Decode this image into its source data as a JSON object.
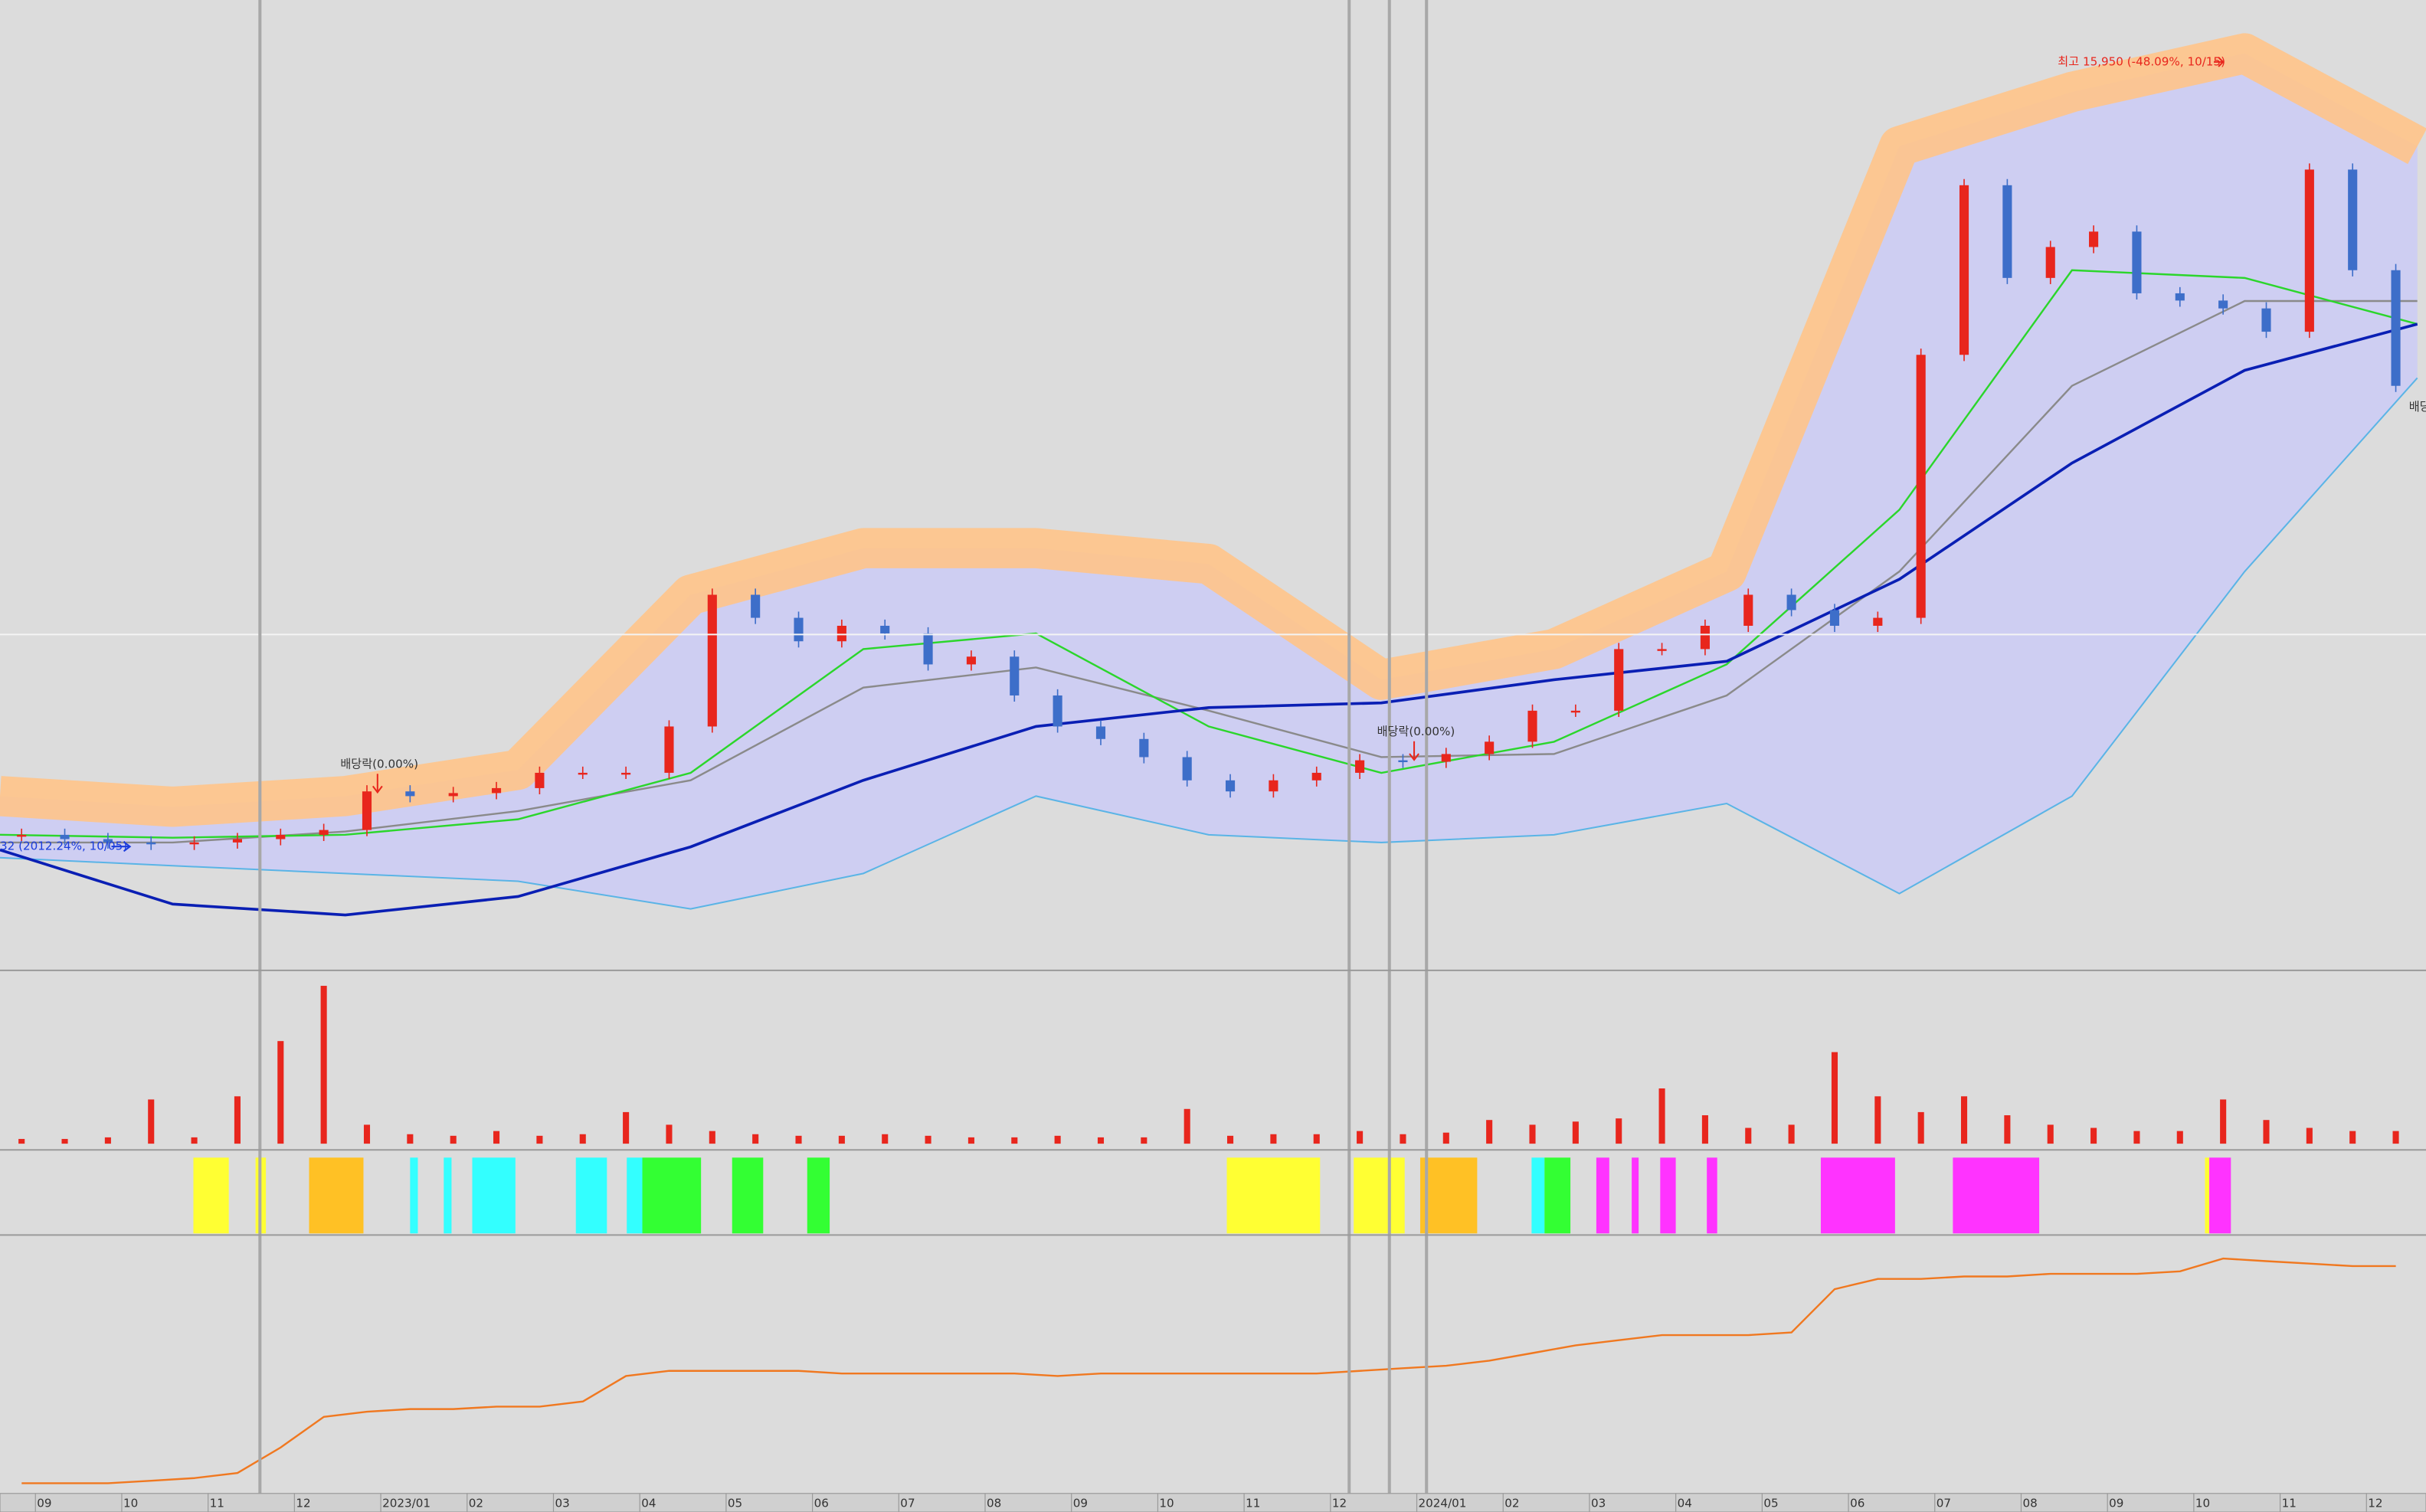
{
  "chart_data": {
    "type": "candlestick",
    "log_scale": true,
    "xlim": [
      0,
      28.1
    ],
    "ylim": [
      470,
      20300
    ],
    "x": [
      0.25,
      0.75,
      1.25,
      1.75,
      2.25,
      2.75,
      3.25,
      3.75,
      4.25,
      4.75,
      5.25,
      5.75,
      6.25,
      6.75,
      7.25,
      7.75,
      8.25,
      8.75,
      9.25,
      9.75,
      10.25,
      10.75,
      11.25,
      11.75,
      12.25,
      12.75,
      13.25,
      13.75,
      14.25,
      14.75,
      15.25,
      15.75,
      16.25,
      16.75,
      17.25,
      17.75,
      18.25,
      18.75,
      19.25,
      19.75,
      20.25,
      20.75,
      21.25,
      21.75,
      22.25,
      22.75,
      23.25,
      23.75,
      24.25,
      24.75,
      25.25,
      25.75,
      26.25,
      26.75,
      27.25,
      27.75
    ],
    "values": [
      787,
      774,
      764,
      760,
      764,
      774,
      787,
      802,
      932,
      915,
      926,
      944,
      1002,
      1002,
      1002,
      1200,
      2004,
      1832,
      1672,
      1776,
      1724,
      1528,
      1575,
      1354,
      1200,
      1143,
      1065,
      973,
      932,
      973,
      1002,
      1052,
      1046,
      1078,
      1131,
      1276,
      1276,
      1622,
      1622,
      1776,
      2004,
      1888,
      1776,
      1832,
      5100,
      9870,
      6880,
      7760,
      8240,
      6480,
      6300,
      6110,
      5580,
      10490,
      7090,
      4520
    ],
    "up_color": "#e8261d",
    "down_color": "#3d6ec9",
    "line_x": [
      0,
      2,
      4,
      6,
      8,
      10,
      12,
      14,
      16,
      18,
      20,
      22,
      24,
      26,
      28
    ],
    "band": {
      "upper": [
        915,
        878,
        915,
        1014,
        2004,
        2402,
        2402,
        2260,
        1440,
        1622,
        2194,
        11490,
        14190,
        16490,
        11490
      ],
      "lower": [
        720,
        698,
        677,
        657,
        590,
        677,
        915,
        787,
        764,
        787,
        889,
        626,
        915,
        2194,
        4660
      ],
      "upper_color": "#ffc48a",
      "fill_color": "#cbcbf6"
    },
    "lines": [
      {
        "color": "#8a8a8a",
        "values": [
          764,
          764,
          797,
          863,
          973,
          1396,
          1510,
          1276,
          1065,
          1078,
          1354,
          2194,
          4520,
          6290,
          6290
        ]
      },
      {
        "color": "#2bd62b",
        "values": [
          787,
          778,
          787,
          836,
          1002,
          1622,
          1724,
          1200,
          1002,
          1131,
          1528,
          2790,
          7090,
          6880,
          5750
        ]
      },
      {
        "color": "#0a1fb4",
        "values": [
          742,
          601,
          576,
          619,
          751,
          973,
          1200,
          1292,
          1315,
          1440,
          1547,
          2129,
          3346,
          4800,
          5750
        ]
      }
    ],
    "high": {
      "x": 25.75,
      "value": 15950
    },
    "annotations": [
      "최고 15,950 (-48.09%, 10/15)",
      "배당락(0.00%)",
      "배당락(0.00%)",
      "32 (2012.24%, 10/05)",
      "배당"
    ],
    "volume": {
      "ylim": [
        0,
        100
      ],
      "color": "#e8261d",
      "values": [
        3,
        3,
        4,
        28,
        4,
        30,
        65,
        100,
        12,
        6,
        5,
        8,
        5,
        6,
        20,
        12,
        8,
        6,
        5,
        5,
        6,
        5,
        4,
        4,
        5,
        4,
        4,
        22,
        5,
        6,
        6,
        8,
        6,
        7,
        15,
        12,
        14,
        16,
        35,
        18,
        10,
        12,
        58,
        30,
        20,
        30,
        18,
        12,
        10,
        8,
        8,
        28,
        15,
        10,
        8,
        8
      ]
    },
    "signals": [
      {
        "start": 2.24,
        "end": 2.65,
        "color": "#ffff33"
      },
      {
        "start": 2.96,
        "end": 3.08,
        "color": "#ffff33"
      },
      {
        "start": 3.58,
        "end": 4.21,
        "color": "#ffc125"
      },
      {
        "start": 4.75,
        "end": 4.84,
        "color": "#33ffff"
      },
      {
        "start": 5.14,
        "end": 5.23,
        "color": "#33ffff"
      },
      {
        "start": 5.47,
        "end": 5.97,
        "color": "#33ffff"
      },
      {
        "start": 6.67,
        "end": 7.03,
        "color": "#33ffff"
      },
      {
        "start": 7.26,
        "end": 7.44,
        "color": "#33ffff"
      },
      {
        "start": 7.44,
        "end": 8.12,
        "color": "#33ff33"
      },
      {
        "start": 8.48,
        "end": 8.84,
        "color": "#33ff33"
      },
      {
        "start": 9.35,
        "end": 9.61,
        "color": "#33ff33"
      },
      {
        "start": 14.21,
        "end": 15.29,
        "color": "#ffff33"
      },
      {
        "start": 15.68,
        "end": 16.27,
        "color": "#ffff33"
      },
      {
        "start": 16.45,
        "end": 17.11,
        "color": "#ffc125"
      },
      {
        "start": 17.74,
        "end": 17.89,
        "color": "#33ffff"
      },
      {
        "start": 17.89,
        "end": 18.19,
        "color": "#33ff33"
      },
      {
        "start": 18.49,
        "end": 18.64,
        "color": "#ff33ff"
      },
      {
        "start": 18.9,
        "end": 18.98,
        "color": "#ff33ff"
      },
      {
        "start": 19.23,
        "end": 19.41,
        "color": "#ff33ff"
      },
      {
        "start": 19.77,
        "end": 19.89,
        "color": "#ff33ff"
      },
      {
        "start": 21.09,
        "end": 21.95,
        "color": "#ff33ff"
      },
      {
        "start": 22.62,
        "end": 23.62,
        "color": "#ff33ff"
      },
      {
        "start": 25.54,
        "end": 25.59,
        "color": "#ffff33"
      },
      {
        "start": 25.59,
        "end": 25.84,
        "color": "#ff33ff"
      }
    ],
    "indicator": {
      "ylim": [
        0,
        100
      ],
      "color": "#f07820",
      "values": [
        4,
        4,
        4,
        5,
        6,
        8,
        18,
        30,
        32,
        33,
        33,
        34,
        34,
        36,
        46,
        48,
        48,
        48,
        48,
        47,
        47,
        47,
        47,
        47,
        46,
        47,
        47,
        47,
        47,
        47,
        47,
        48,
        49,
        50,
        52,
        55,
        58,
        60,
        62,
        62,
        62,
        63,
        80,
        84,
        84,
        85,
        85,
        86,
        86,
        86,
        87,
        92,
        91,
        90,
        89,
        89
      ]
    },
    "xticks": [
      {
        "value": 0.5,
        "label": "09"
      },
      {
        "value": 1.5,
        "label": "10"
      },
      {
        "value": 2.5,
        "label": "11"
      },
      {
        "value": 3.5,
        "label": "12"
      },
      {
        "value": 4.5,
        "label": "2023/01"
      },
      {
        "value": 5.5,
        "label": "02"
      },
      {
        "value": 6.5,
        "label": "03"
      },
      {
        "value": 7.5,
        "label": "04"
      },
      {
        "value": 8.5,
        "label": "05"
      },
      {
        "value": 9.5,
        "label": "06"
      },
      {
        "value": 10.5,
        "label": "07"
      },
      {
        "value": 11.5,
        "label": "08"
      },
      {
        "value": 12.5,
        "label": "09"
      },
      {
        "value": 13.5,
        "label": "10"
      },
      {
        "value": 14.5,
        "label": "11"
      },
      {
        "value": 15.5,
        "label": "12"
      },
      {
        "value": 16.5,
        "label": "2024/01"
      },
      {
        "value": 17.5,
        "label": "02"
      },
      {
        "value": 18.5,
        "label": "03"
      },
      {
        "value": 19.5,
        "label": "04"
      },
      {
        "value": 20.5,
        "label": "05"
      },
      {
        "value": 21.5,
        "label": "06"
      },
      {
        "value": 22.5,
        "label": "07"
      },
      {
        "value": 23.5,
        "label": "08"
      },
      {
        "value": 24.5,
        "label": "09"
      },
      {
        "value": 25.5,
        "label": "10"
      },
      {
        "value": 26.5,
        "label": "11"
      },
      {
        "value": 27.5,
        "label": "12"
      }
    ]
  }
}
